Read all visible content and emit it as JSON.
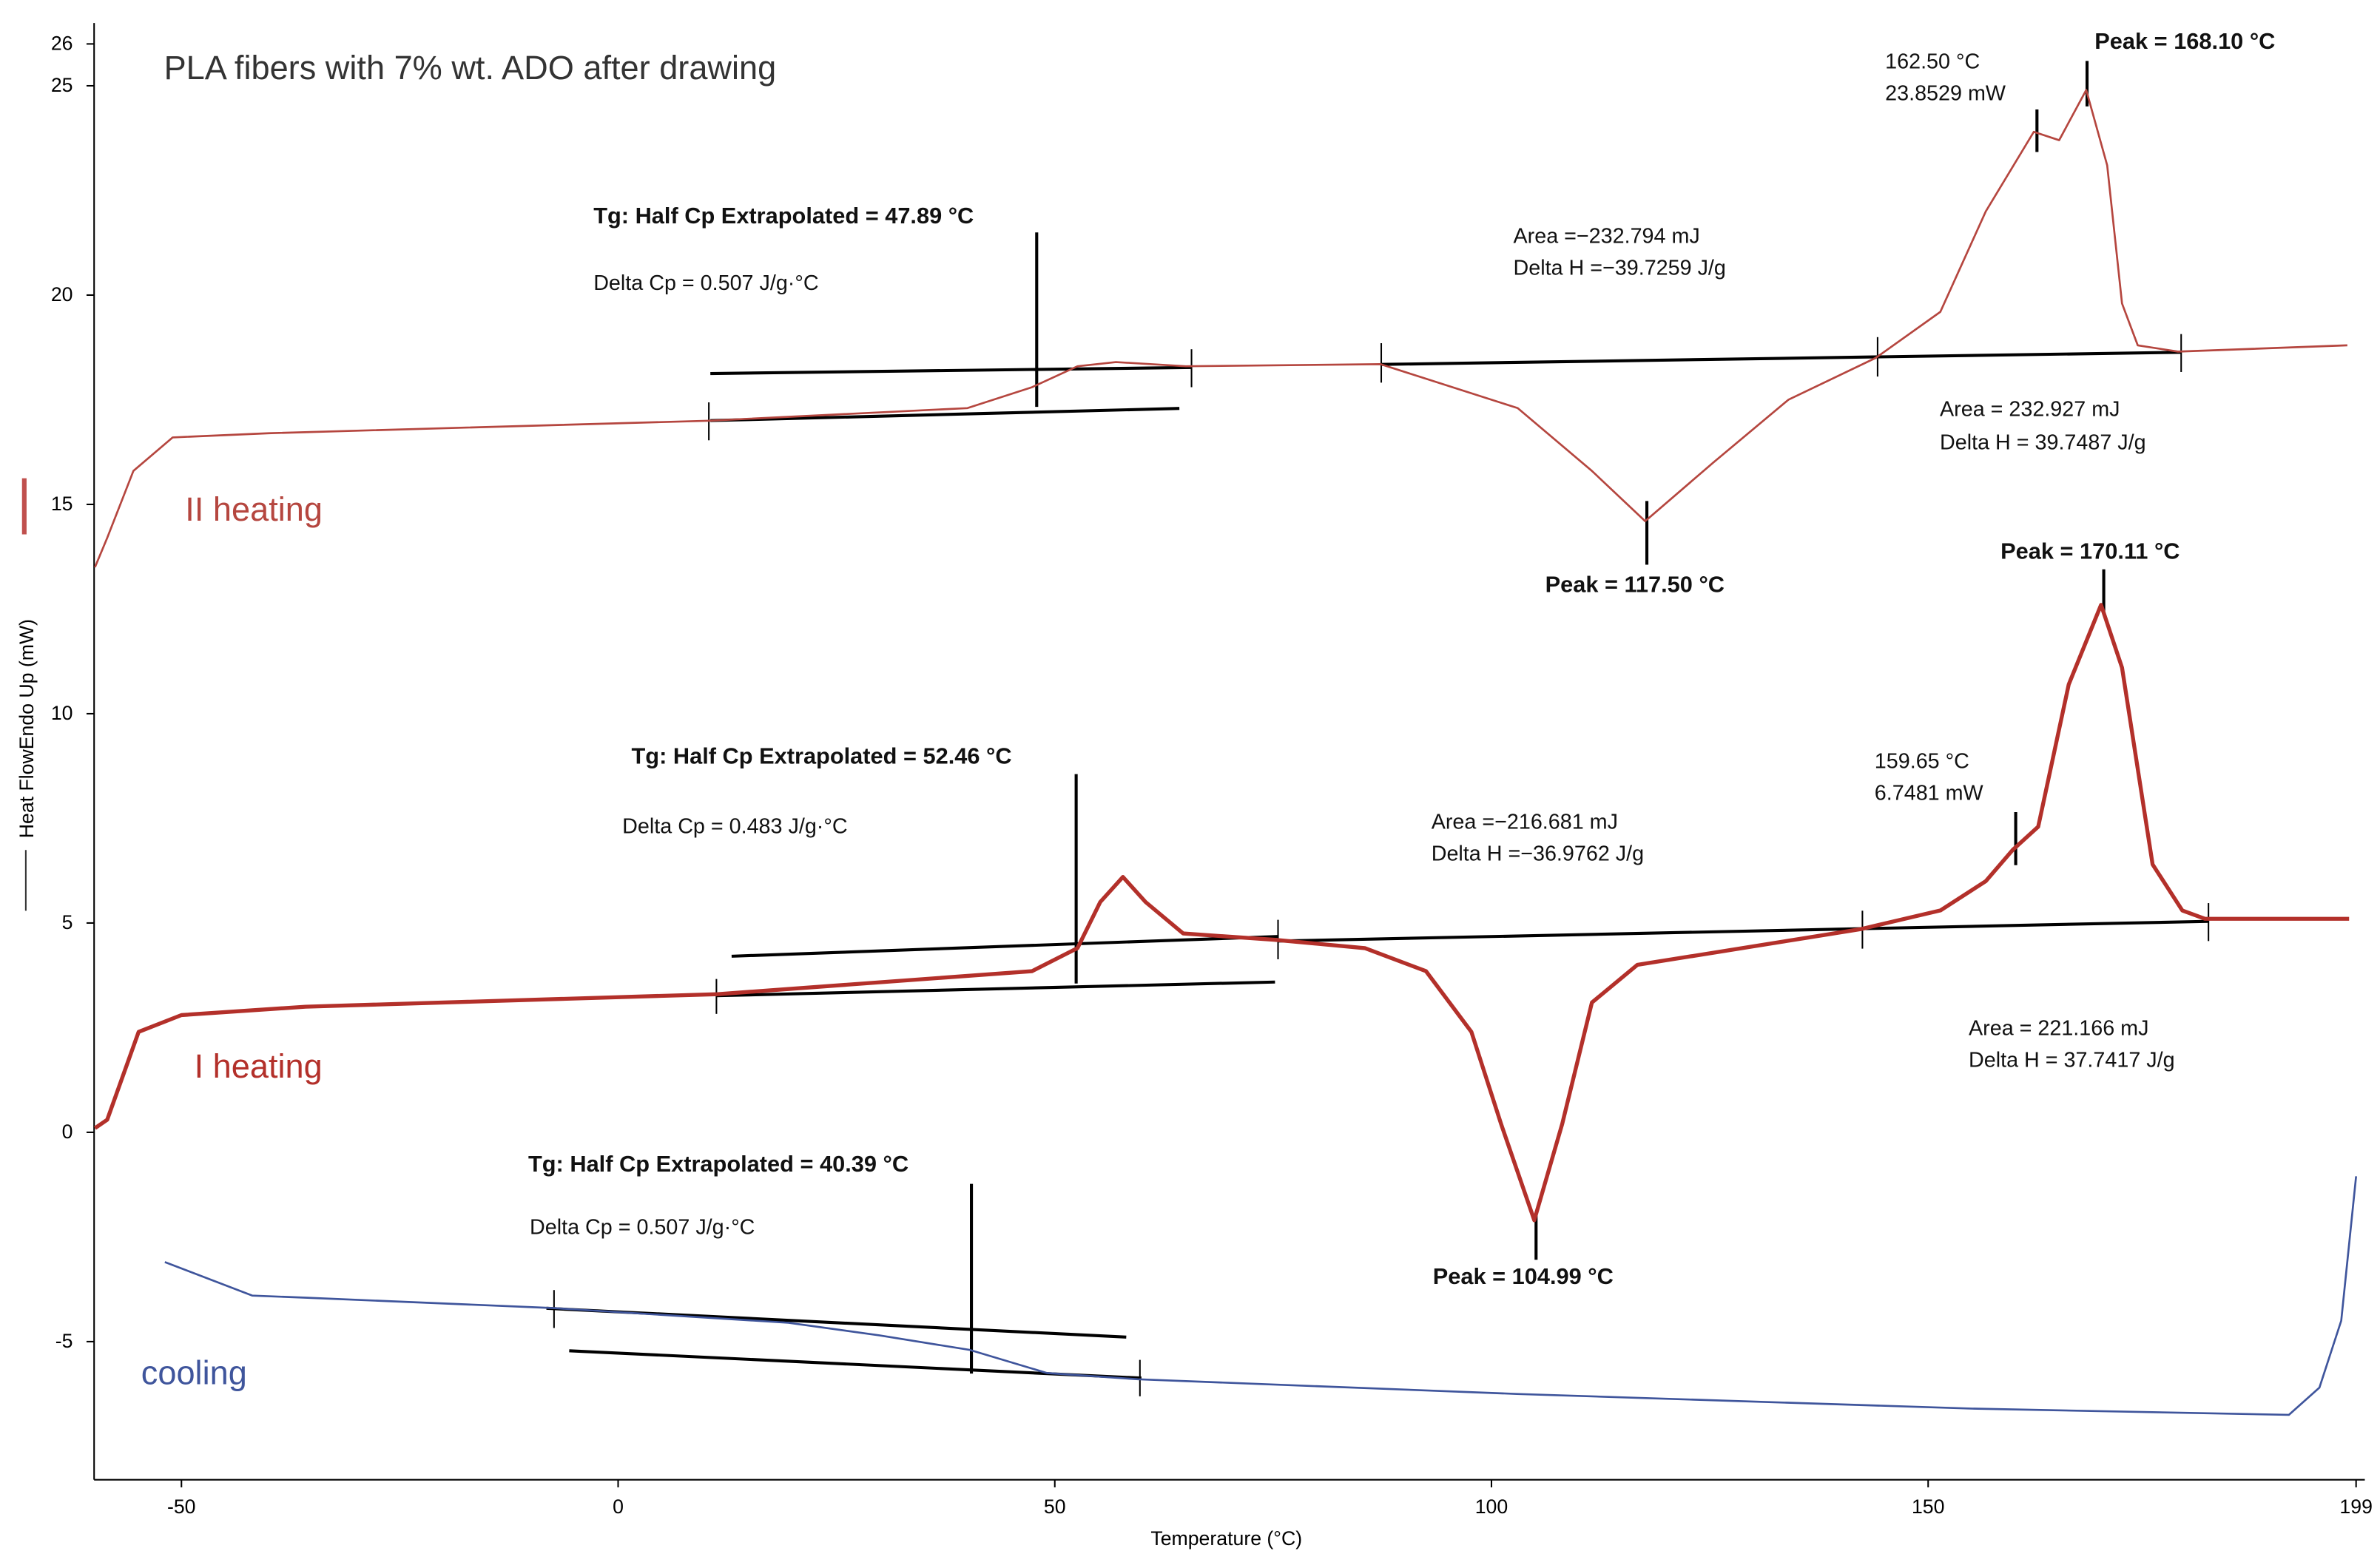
{
  "chart_data": {
    "type": "line",
    "title": "PLA fibers with 7% wt. ADO after drawing",
    "x_label": "Temperature (°C)",
    "y_label": "Heat FlowEndo Up (mW)",
    "xlim": [
      -60,
      200
    ],
    "xticks": [
      -50,
      0,
      50,
      100,
      150,
      199
    ],
    "ylim": [
      -8.3,
      26.5
    ],
    "yticks": [
      -5,
      0,
      5,
      10,
      15,
      20,
      25,
      26
    ],
    "grid": false,
    "series": [
      {
        "name": "II heating",
        "color": "#b5463f",
        "x": [
          -59.9,
          -58.5,
          -55.5,
          -51,
          -40,
          10.5,
          40,
          47.4,
          52.6,
          57,
          65,
          87.3,
          103,
          111.5,
          117.6,
          125.4,
          134,
          144,
          151.4,
          156.6,
          162.1,
          165,
          168.1,
          170.5,
          172.2,
          174,
          178.6,
          198
        ],
        "values": [
          13.5,
          14.2,
          15.8,
          16.6,
          16.7,
          17.0,
          17.3,
          17.8,
          18.3,
          18.4,
          18.3,
          18.35,
          17.3,
          15.8,
          14.6,
          16.0,
          17.5,
          18.5,
          19.6,
          22.0,
          23.9,
          23.7,
          24.9,
          23.1,
          19.8,
          18.8,
          18.65,
          18.8
        ]
      },
      {
        "name": "I heating",
        "color": "#b3302a",
        "x": [
          -59.9,
          -58.5,
          -54.9,
          -50,
          -35.8,
          11.4,
          47.4,
          52.6,
          55.2,
          57.8,
          60.4,
          64.7,
          75.1,
          85.5,
          92.5,
          97.7,
          101.1,
          104.9,
          108.1,
          111.5,
          116.7,
          142.2,
          151.4,
          156.6,
          159.7,
          162.6,
          166.1,
          169.8,
          172.2,
          175.7,
          179.1,
          181.7,
          198.2
        ],
        "values": [
          0.1,
          0.3,
          2.4,
          2.8,
          3.0,
          3.3,
          3.85,
          4.4,
          5.5,
          6.1,
          5.5,
          4.75,
          4.6,
          4.4,
          3.85,
          2.4,
          0.2,
          -2.1,
          0.2,
          3.1,
          4.0,
          4.85,
          5.3,
          6.0,
          6.75,
          7.3,
          10.7,
          12.6,
          11.1,
          6.4,
          5.3,
          5.1,
          5.1
        ]
      },
      {
        "name": "cooling",
        "color": "#3f559c",
        "x": [
          -51.9,
          -41.9,
          -35.8,
          -7.3,
          19.5,
          29.9,
          40.3,
          49.1,
          59.5,
          102.9,
          154.9,
          191.3,
          194.8,
          197.3,
          199
        ],
        "values": [
          -3.1,
          -3.9,
          -3.95,
          -4.2,
          -4.55,
          -4.85,
          -5.2,
          -5.75,
          -5.9,
          -6.25,
          -6.6,
          -6.75,
          -6.1,
          -4.5,
          -1.05
        ]
      }
    ],
    "annotations": [
      "Tg: Half Cp Extrapolated = 47.89 °C",
      "Delta Cp = 0.507 J/g·°C",
      "Area =−232.794 mJ",
      "Delta H =−39.7259 J/g",
      "162.50 °C",
      "23.8529 mW",
      "Peak = 168.10 °C",
      "Area = 232.927 mJ",
      "Delta H = 39.7487 J/g",
      "Peak = 117.50 °C",
      "Peak = 170.11 °C",
      "Tg: Half Cp Extrapolated = 52.46 °C",
      "Delta Cp = 0.483 J/g·°C",
      "Area =−216.681 mJ",
      "Delta H =−36.9762 J/g",
      "159.65 °C",
      "6.7481 mW",
      "Area = 221.166 mJ",
      "Delta H = 37.7417 J/g",
      "Peak = 104.99 °C",
      "Tg: Half Cp Extrapolated = 40.39 °C",
      "Delta Cp = 0.507 J/g·°C"
    ]
  }
}
